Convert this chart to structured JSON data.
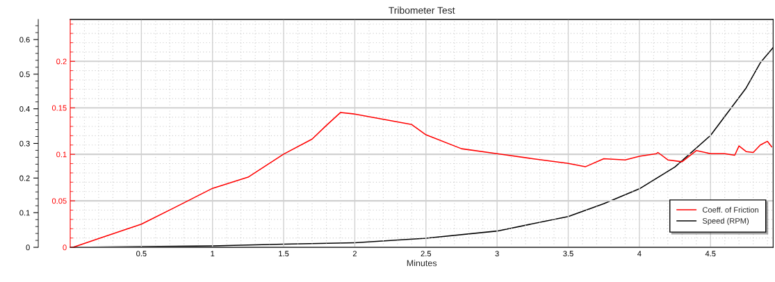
{
  "chart_data": {
    "type": "line",
    "title": "Tribometer Test",
    "xlabel": "Minutes",
    "xlim": [
      0,
      4.94
    ],
    "xticks": [
      0.5,
      1,
      1.5,
      2,
      2.5,
      3,
      3.5,
      4,
      4.5
    ],
    "ylim": [
      0,
      0.245
    ],
    "yticks": [
      0,
      0.05,
      0.1,
      0.15,
      0.2
    ],
    "y2lim": [
      0,
      0.658
    ],
    "y2ticks": [
      0,
      0.1,
      0.2,
      0.3,
      0.4,
      0.5,
      0.6
    ],
    "grid": true,
    "legend": "bottom right",
    "line_style": "solid",
    "marker": "none",
    "series": [
      {
        "name": "Coeff. of Friction",
        "color": "#ff0000",
        "x": [
          0.02,
          0.25,
          0.5,
          0.75,
          1.0,
          1.25,
          1.5,
          1.7,
          1.8,
          1.9,
          2.0,
          2.2,
          2.4,
          2.5,
          2.75,
          3.0,
          3.25,
          3.5,
          3.62,
          3.75,
          3.9,
          4.0,
          4.12,
          4.13,
          4.2,
          4.3,
          4.4,
          4.5,
          4.6,
          4.67,
          4.7,
          4.75,
          4.8,
          4.85,
          4.9,
          4.93
        ],
        "values": [
          0,
          0.012,
          0.0249,
          0.044,
          0.0634,
          0.0754,
          0.1002,
          0.1164,
          0.131,
          0.145,
          0.1433,
          0.1376,
          0.132,
          0.121,
          0.106,
          0.1007,
          0.0953,
          0.0903,
          0.0866,
          0.0953,
          0.094,
          0.0978,
          0.1007,
          0.102,
          0.094,
          0.092,
          0.104,
          0.1007,
          0.1007,
          0.099,
          0.109,
          0.103,
          0.102,
          0.11,
          0.114,
          0.108
        ]
      },
      {
        "name": "Speed (RPM)",
        "color": "#000000",
        "axis": "y2",
        "x": [
          0.02,
          0.5,
          1.0,
          1.5,
          2.0,
          2.5,
          3.0,
          3.5,
          3.75,
          4.0,
          4.25,
          4.5,
          4.75,
          4.85,
          4.94
        ],
        "values": [
          0,
          0.002,
          0.004,
          0.009,
          0.013,
          0.026,
          0.047,
          0.089,
          0.126,
          0.169,
          0.232,
          0.323,
          0.46,
          0.533,
          0.577
        ]
      }
    ]
  }
}
